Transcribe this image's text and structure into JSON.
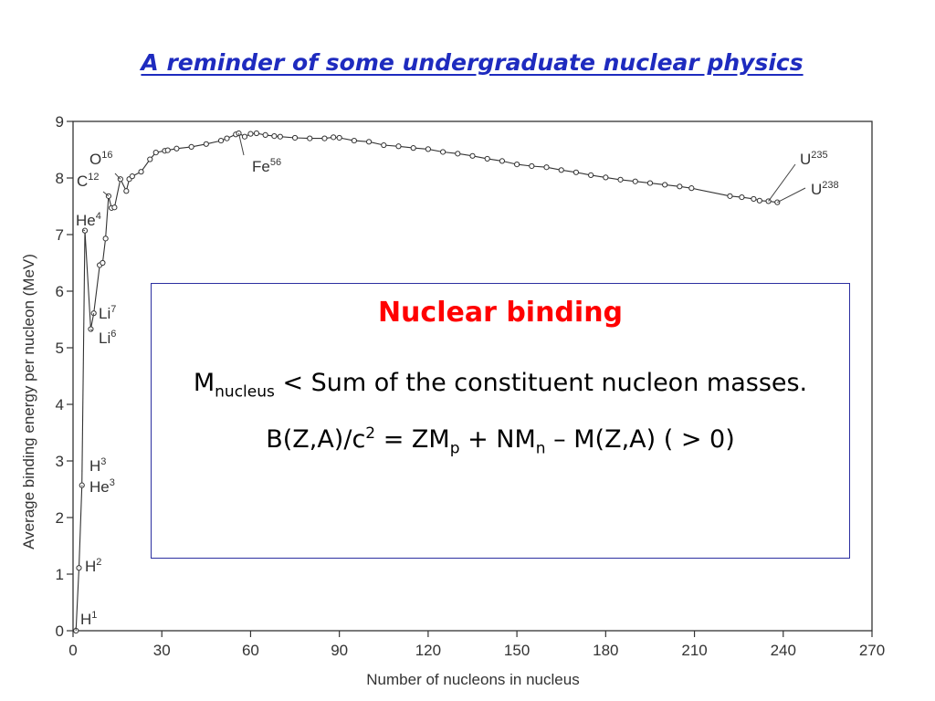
{
  "slide": {
    "title": "A reminder of some undergraduate nuclear physics"
  },
  "box": {
    "title": "Nuclear binding",
    "line1": {
      "m": "M",
      "sub": "nucleus",
      "rest": " < Sum of the constituent nucleon masses."
    },
    "line2": {
      "a": "B(Z,A)/c",
      "sup": "2",
      "b": " = ZM",
      "sub1": "p",
      "c": " + NM",
      "sub2": "n",
      "d": " – M(Z,A) ( > 0)"
    }
  },
  "chart_data": {
    "type": "line",
    "xlabel": "Number of nucleons in nucleus",
    "ylabel": "Average binding energy per nucleon (MeV)",
    "xlim": [
      0,
      270
    ],
    "ylim": [
      0,
      9
    ],
    "xticks": [
      0,
      30,
      60,
      90,
      120,
      150,
      180,
      210,
      240,
      270
    ],
    "yticks": [
      0,
      1,
      2,
      3,
      4,
      5,
      6,
      7,
      8,
      9
    ],
    "grid": false,
    "series": [
      {
        "x": [
          1,
          2,
          3,
          4,
          6,
          7,
          9,
          10,
          11,
          12,
          13,
          14,
          16,
          18,
          19,
          20,
          23,
          26,
          28,
          31,
          32,
          35,
          40,
          45,
          50,
          52,
          55,
          56,
          58,
          60,
          62,
          65,
          68,
          70,
          75,
          80,
          85,
          88,
          90,
          95,
          100,
          105,
          110,
          115,
          120,
          125,
          130,
          135,
          140,
          145,
          150,
          155,
          160,
          165,
          170,
          175,
          180,
          185,
          190,
          195,
          200,
          205,
          209,
          222,
          226,
          230,
          232,
          235,
          238
        ],
        "y": [
          0,
          1.11,
          2.57,
          7.07,
          5.33,
          5.61,
          6.46,
          6.5,
          6.93,
          7.68,
          7.47,
          7.48,
          7.98,
          7.77,
          7.98,
          8.03,
          8.11,
          8.33,
          8.45,
          8.48,
          8.49,
          8.52,
          8.55,
          8.6,
          8.66,
          8.7,
          8.77,
          8.79,
          8.73,
          8.78,
          8.79,
          8.76,
          8.74,
          8.73,
          8.71,
          8.7,
          8.7,
          8.72,
          8.71,
          8.66,
          8.64,
          8.58,
          8.56,
          8.53,
          8.51,
          8.46,
          8.43,
          8.39,
          8.34,
          8.3,
          8.24,
          8.21,
          8.19,
          8.14,
          8.1,
          8.05,
          8.01,
          7.97,
          7.94,
          7.91,
          7.88,
          7.85,
          7.82,
          7.68,
          7.66,
          7.63,
          7.6,
          7.59,
          7.57
        ]
      }
    ],
    "annotations": [
      {
        "sym": "H",
        "mass": "1",
        "x": 1,
        "y": 0
      },
      {
        "sym": "H",
        "mass": "2",
        "x": 2,
        "y": 1.11
      },
      {
        "sym": "H",
        "mass": "3",
        "x": 3,
        "y": 2.83
      },
      {
        "sym": "He",
        "mass": "3",
        "x": 3,
        "y": 2.57
      },
      {
        "sym": "He",
        "mass": "4",
        "x": 4,
        "y": 7.07
      },
      {
        "sym": "Li",
        "mass": "6",
        "x": 6,
        "y": 5.33
      },
      {
        "sym": "Li",
        "mass": "7",
        "x": 7,
        "y": 5.61
      },
      {
        "sym": "C",
        "mass": "12",
        "x": 12,
        "y": 7.68
      },
      {
        "sym": "O",
        "mass": "16",
        "x": 16,
        "y": 7.98
      },
      {
        "sym": "Fe",
        "mass": "56",
        "x": 56,
        "y": 8.79
      },
      {
        "sym": "U",
        "mass": "235",
        "x": 235,
        "y": 7.59
      },
      {
        "sym": "U",
        "mass": "238",
        "x": 238,
        "y": 7.57
      }
    ]
  }
}
